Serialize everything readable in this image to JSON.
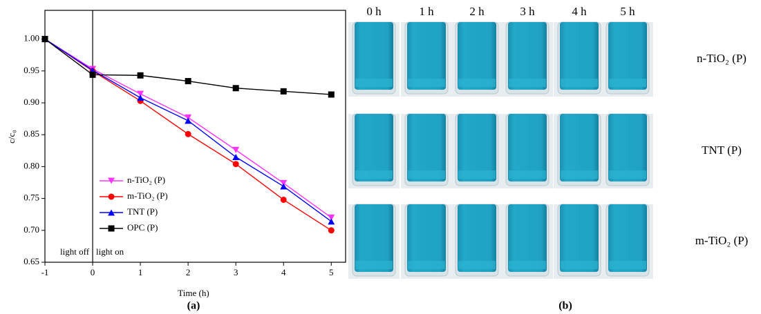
{
  "chart_data": {
    "type": "line",
    "x_label": "Time (h)",
    "y_label": "c/c₀",
    "x": [
      -1,
      0,
      1,
      2,
      3,
      4,
      5
    ],
    "series": [
      {
        "name": "n-TiO₂ (P)",
        "color": "#ff33ff",
        "marker": "triangle-down",
        "values": [
          1.0,
          0.953,
          0.914,
          0.877,
          0.826,
          0.774,
          0.72
        ]
      },
      {
        "name": "m-TiO₂ (P)",
        "color": "#ff0000",
        "marker": "circle",
        "values": [
          1.0,
          0.95,
          0.903,
          0.851,
          0.804,
          0.748,
          0.7
        ]
      },
      {
        "name": "TNT (P)",
        "color": "#0000ff",
        "marker": "triangle-up",
        "values": [
          1.0,
          0.951,
          0.908,
          0.872,
          0.815,
          0.769,
          0.714
        ]
      },
      {
        "name": "OPC (P)",
        "color": "#000000",
        "marker": "square",
        "values": [
          1.0,
          0.944,
          0.943,
          0.934,
          0.923,
          0.918,
          0.913
        ]
      }
    ],
    "xlim": [
      -1,
      5.3
    ],
    "ylim": [
      0.65,
      1.045
    ],
    "xticks": [
      -1,
      0,
      1,
      2,
      3,
      4,
      5
    ],
    "yticks": [
      0.65,
      {
        "value": 0.7,
        "label": "0.70"
      },
      0.75,
      {
        "value": 0.8,
        "label": "0.80"
      },
      0.85,
      {
        "value": 0.9,
        "label": "0.90"
      },
      0.95,
      {
        "value": 1.0,
        "label": "1.00"
      }
    ],
    "vline": 0,
    "annotations": [
      "light off",
      "light on"
    ],
    "legend": "lower left",
    "grid": false
  },
  "photos": {
    "columns": [
      "0 h",
      "1 h",
      "2 h",
      "3 h",
      "4 h",
      "5 h"
    ],
    "rows": [
      "n-TiO₂ (P)",
      "TNT (P)",
      "m-TiO₂ (P)"
    ]
  },
  "captions": [
    "(a)",
    "(b)"
  ]
}
